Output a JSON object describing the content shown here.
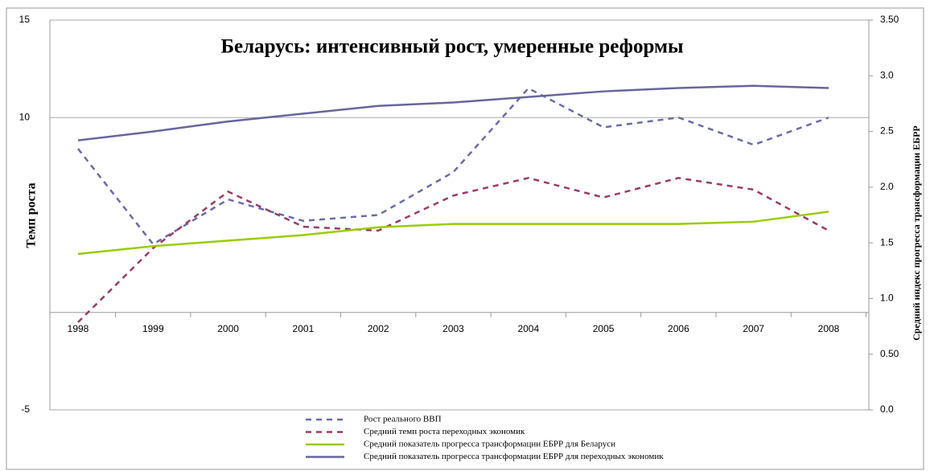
{
  "chart_data": {
    "type": "line",
    "title": "Беларусь: интенсивный рост, умеренные реформы",
    "ylabel": "Темп роста",
    "y2label": "Средний  индекс прогресса трансформации ЕБРР",
    "categories": [
      "1998",
      "1999",
      "2000",
      "2001",
      "2002",
      "2003",
      "2004",
      "2005",
      "2006",
      "2007",
      "2008"
    ],
    "series": [
      {
        "name": "Рост реального ВВП",
        "color": "#6b6ba8",
        "dashed": true,
        "values": [
          8.4,
          3.5,
          5.8,
          4.7,
          5.0,
          7.2,
          11.5,
          9.5,
          10.0,
          8.6,
          10.0
        ]
      },
      {
        "name": "Средний темп роста переходных экономик",
        "color": "#9b3a66",
        "dashed": true,
        "values": [
          -0.5,
          3.3,
          6.2,
          4.4,
          4.2,
          6.0,
          6.9,
          5.9,
          6.9,
          6.3,
          4.2
        ]
      },
      {
        "name": "Средний показатель прогресса трансформации ЕБРР для Беларуси",
        "color": "#99cc00",
        "dashed": false,
        "axis": "y2",
        "values": [
          1.4,
          1.47,
          1.52,
          1.57,
          1.64,
          1.67,
          1.67,
          1.67,
          1.67,
          1.69,
          1.78
        ]
      },
      {
        "name": "Средний показатель прогресса трансформации ЕБРР для переходных экономик",
        "color": "#66669e",
        "dashed": false,
        "axis": "y2",
        "values": [
          2.42,
          2.5,
          2.59,
          2.66,
          2.73,
          2.76,
          2.81,
          2.86,
          2.89,
          2.91,
          2.89
        ]
      }
    ],
    "ylim": [
      -5,
      15
    ],
    "yticks": [
      -5,
      10,
      15
    ],
    "y2lim": [
      0,
      3.5
    ],
    "y2ticks": [
      {
        "value": 0,
        "label": "0.0"
      },
      {
        "value": 0.5,
        "label": "0.50"
      },
      {
        "value": 1,
        "label": "1.0"
      },
      1.5,
      {
        "value": 2,
        "label": "2.0"
      },
      2.5,
      {
        "value": 3,
        "label": "3.0"
      },
      {
        "value": 3.5,
        "label": "3.50"
      }
    ],
    "grid": true
  }
}
